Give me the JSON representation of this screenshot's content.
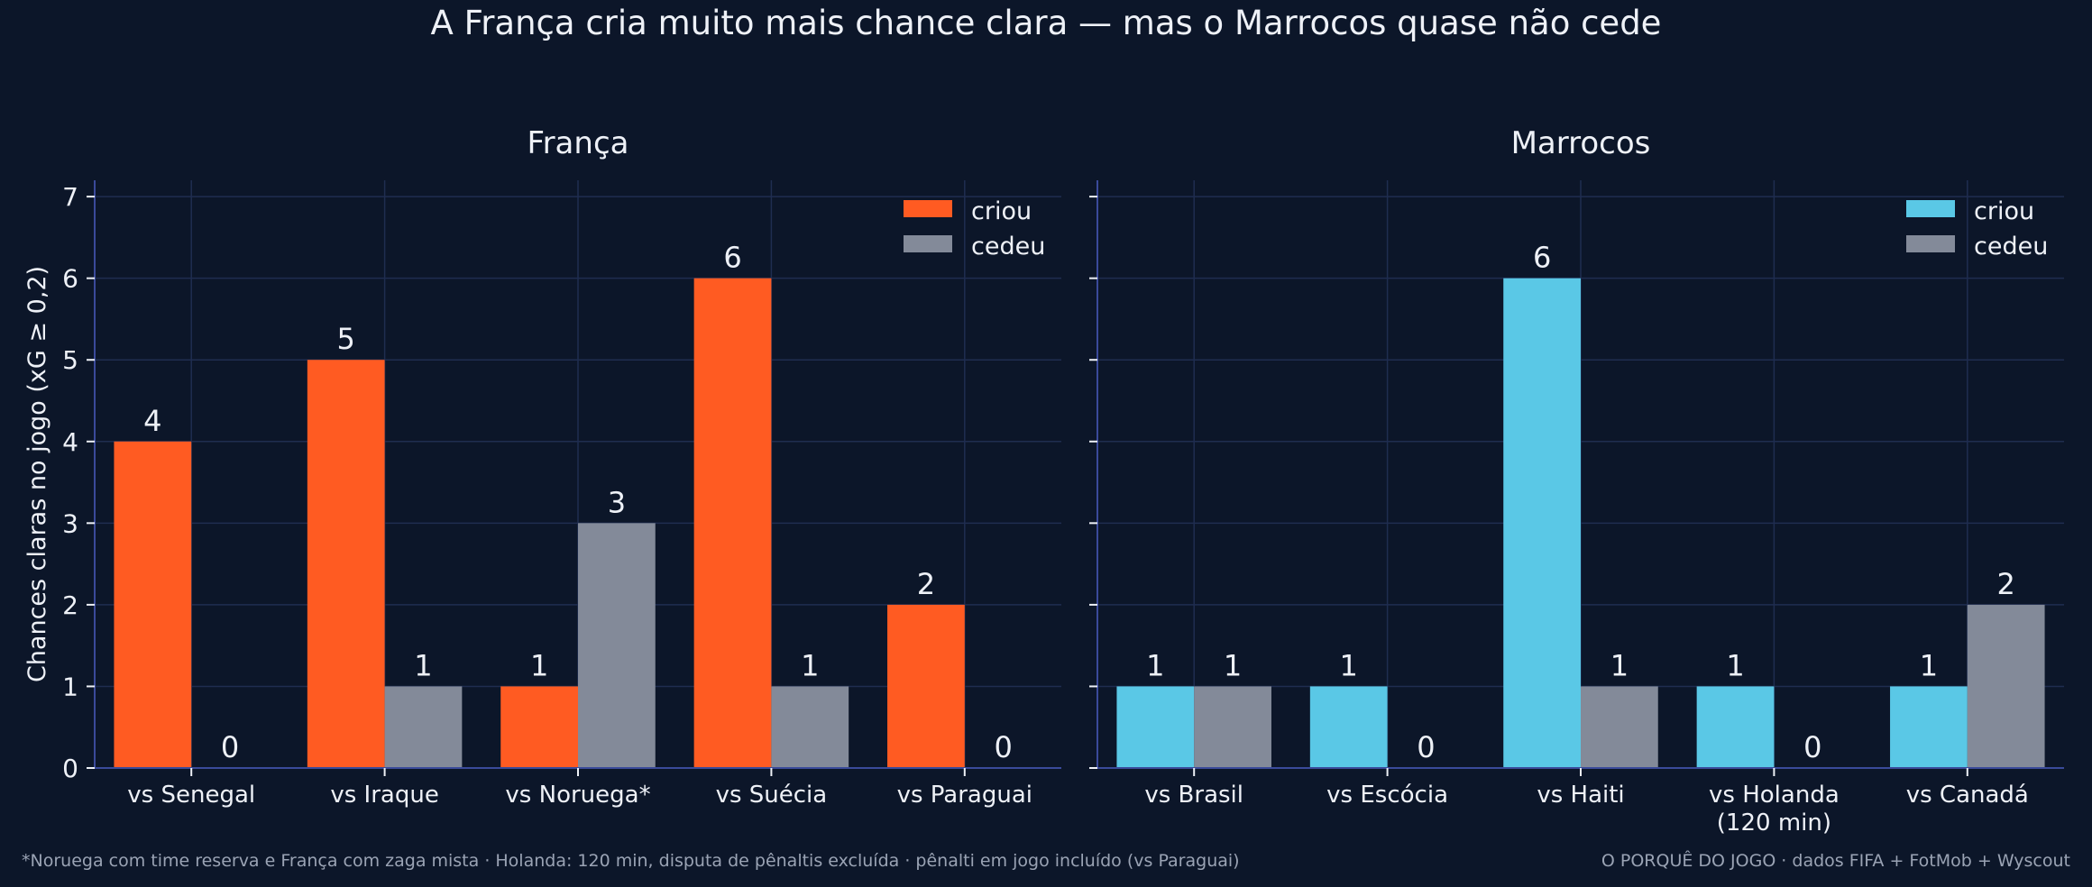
{
  "title": "A França cria muito mais chance clara — mas o Marrocos quase não cede",
  "footnote_left": "*Noruega com time reserva e França com zaga mista · Holanda: 120 min, disputa de pênaltis excluída · pênalti em jogo incluído (vs Paraguai)",
  "footnote_right": "O PORQUÊ DO JOGO · dados FIFA + FotMob + Wyscout",
  "colors": {
    "background": "#0c1629",
    "grid": "#1f2d50",
    "axis": "#3a4a9a",
    "text": "#eef1f7",
    "france_created": "#ff5b22",
    "morocco_created": "#5ac8e6",
    "conceded": "#838a99"
  },
  "chart_data": [
    {
      "type": "bar",
      "title": "França",
      "ylabel": "Chances claras no jogo (xG ≥ 0,2)",
      "xlabel": "",
      "ylim": [
        0,
        7.2
      ],
      "yticks": [
        0,
        1,
        2,
        3,
        4,
        5,
        6,
        7
      ],
      "grid": true,
      "legend_position": "top-right",
      "categories": [
        "vs Senegal",
        "vs Iraque",
        "vs Noruega*",
        "vs Suécia",
        "vs Paraguai"
      ],
      "series": [
        {
          "name": "criou",
          "values": [
            4,
            5,
            1,
            6,
            2
          ],
          "color": "#ff5b22"
        },
        {
          "name": "cedeu",
          "values": [
            0,
            1,
            3,
            1,
            0
          ],
          "color": "#838a99"
        }
      ]
    },
    {
      "type": "bar",
      "title": "Marrocos",
      "ylabel": "",
      "xlabel": "",
      "ylim": [
        0,
        7.2
      ],
      "yticks": [
        0,
        1,
        2,
        3,
        4,
        5,
        6,
        7
      ],
      "grid": true,
      "legend_position": "top-right",
      "categories": [
        "vs Brasil",
        "vs Escócia",
        "vs Haiti",
        "vs Holanda\n(120 min)",
        "vs Canadá"
      ],
      "series": [
        {
          "name": "criou",
          "values": [
            1,
            1,
            6,
            1,
            1
          ],
          "color": "#5ac8e6"
        },
        {
          "name": "cedeu",
          "values": [
            1,
            0,
            1,
            0,
            2
          ],
          "color": "#838a99"
        }
      ]
    }
  ]
}
